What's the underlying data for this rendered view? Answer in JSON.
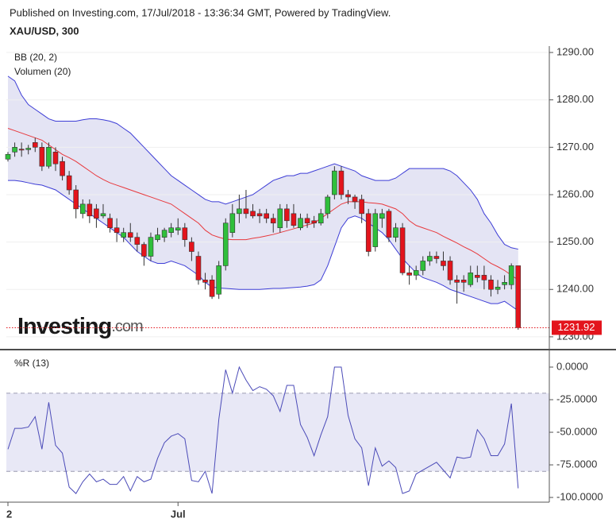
{
  "header": {
    "published": "Published on Investing.com, 17/Jul/2018 - 13:36:34 GMT, Powered by TradingView."
  },
  "watermark": [
    "Investing",
    ".com"
  ],
  "chart_data": [
    {
      "type": "candlestick",
      "title": "XAU/USD, 300",
      "indicators": [
        "BB (20, 2)",
        "Volumen (20)"
      ],
      "categories": [
        "2",
        null,
        null,
        null,
        null,
        null,
        null,
        null,
        null,
        null,
        null,
        null,
        null,
        null,
        null,
        null,
        null,
        null,
        null,
        null,
        null,
        null,
        null,
        null,
        null,
        "Jul",
        null,
        null,
        null,
        null,
        null,
        null,
        null,
        null,
        null,
        null,
        null,
        null,
        null,
        null,
        null,
        null,
        null,
        null,
        null,
        null,
        null,
        null,
        null,
        null,
        null,
        null,
        null,
        null,
        null,
        null,
        null,
        null,
        null,
        null,
        null,
        null,
        null,
        null,
        null,
        null,
        null,
        null,
        null,
        null,
        null,
        null,
        null,
        null,
        null,
        null
      ],
      "open": [
        1267.5,
        1269,
        1269.6,
        1269.5,
        1271,
        1270,
        1266,
        1269,
        1267,
        1264,
        1261,
        1256,
        1258,
        1257,
        1255.5,
        1255,
        1253,
        1251,
        1252,
        1251,
        1249.5,
        1247,
        1250.5,
        1251,
        1252,
        1252.5,
        1253,
        1250,
        1247,
        1242,
        1242,
        1239,
        1245,
        1252,
        1256,
        1257,
        1256.5,
        1256,
        1256,
        1255,
        1253,
        1257,
        1256,
        1253,
        1255,
        1254.5,
        1254,
        1256,
        1260,
        1265,
        1260,
        1259.5,
        1259,
        1256,
        1249,
        1255,
        1256.5,
        1251,
        1253,
        1243.5,
        1243,
        1244,
        1246,
        1247,
        1246,
        1246,
        1242,
        1242,
        1241,
        1243,
        1243,
        1242,
        1240,
        1241,
        1241,
        1245
      ],
      "high": [
        1269,
        1271,
        1271,
        1270.5,
        1272,
        1271,
        1271,
        1270,
        1268,
        1265,
        1262,
        1259,
        1259,
        1258,
        1258,
        1256,
        1255,
        1253,
        1254,
        1252,
        1250,
        1252,
        1253,
        1253,
        1254,
        1255,
        1254,
        1251,
        1248,
        1243.5,
        1243,
        1246,
        1255,
        1258,
        1260,
        1261,
        1258,
        1257,
        1257,
        1256,
        1258,
        1258,
        1258,
        1256,
        1256,
        1255.5,
        1257,
        1260,
        1266,
        1266,
        1261,
        1260,
        1260,
        1257,
        1257,
        1257,
        1257,
        1254,
        1254,
        1245,
        1245,
        1247,
        1248,
        1248,
        1248,
        1247,
        1243,
        1243,
        1245,
        1245,
        1245,
        1243,
        1242,
        1243,
        1245.5,
        1245
      ],
      "low": [
        1267,
        1268,
        1268,
        1268.5,
        1269,
        1265,
        1265.5,
        1265,
        1263,
        1260,
        1255,
        1255,
        1254,
        1253,
        1255,
        1252,
        1250,
        1250,
        1250,
        1248,
        1245,
        1246,
        1250,
        1250,
        1251,
        1251.5,
        1249,
        1246,
        1241,
        1240,
        1238,
        1238,
        1244,
        1251,
        1254,
        1255,
        1255,
        1254,
        1254,
        1252,
        1252,
        1253,
        1253,
        1252.5,
        1253,
        1253,
        1253.5,
        1255,
        1259,
        1259,
        1258,
        1257,
        1254,
        1247,
        1248,
        1253,
        1250,
        1250,
        1243,
        1241,
        1242,
        1243,
        1245,
        1245.5,
        1244,
        1241,
        1237,
        1239.5,
        1240.5,
        1241.5,
        1240,
        1238.5,
        1239,
        1240,
        1240,
        1231.5
      ],
      "close": [
        1268.5,
        1270,
        1269.4,
        1269.8,
        1270,
        1266,
        1270,
        1266.5,
        1264,
        1261,
        1257,
        1258,
        1255.5,
        1255,
        1256,
        1253,
        1252,
        1252,
        1251,
        1249.5,
        1247,
        1251,
        1251.5,
        1252.5,
        1253,
        1253,
        1250.5,
        1248,
        1242,
        1241.5,
        1238.5,
        1245,
        1254,
        1256,
        1257,
        1256,
        1255.5,
        1255.5,
        1255,
        1254,
        1257,
        1254.5,
        1253.5,
        1255,
        1254,
        1254,
        1256,
        1259.5,
        1265,
        1260,
        1259.5,
        1258.5,
        1256,
        1248,
        1256,
        1256,
        1251,
        1253,
        1243.5,
        1243,
        1244,
        1246,
        1247,
        1246.5,
        1245,
        1242,
        1241.5,
        1241.5,
        1243.5,
        1242.5,
        1242,
        1240,
        1240.5,
        1241.5,
        1245,
        1231.92
      ],
      "bb_upper": [
        1285,
        1284,
        1281,
        1279,
        1278,
        1277,
        1276,
        1275.5,
        1275.5,
        1275.5,
        1275.5,
        1275.8,
        1276,
        1276,
        1275.8,
        1275.5,
        1275,
        1274,
        1273,
        1271.5,
        1270,
        1268.5,
        1267,
        1265.5,
        1264,
        1263,
        1262,
        1261,
        1260,
        1259,
        1258.5,
        1258.5,
        1258,
        1258.5,
        1259,
        1259.5,
        1260,
        1261,
        1262,
        1263,
        1263.5,
        1264,
        1264,
        1264.5,
        1264.5,
        1265,
        1265.5,
        1266,
        1266.5,
        1266,
        1265.5,
        1265,
        1264,
        1263.5,
        1263,
        1263,
        1263,
        1263.5,
        1264.5,
        1265.5,
        1265.5,
        1265.5,
        1265.5,
        1265.5,
        1265.5,
        1265,
        1264,
        1262.5,
        1261,
        1259,
        1256,
        1254,
        1251.5,
        1249.5,
        1248.8,
        1248.5
      ],
      "bb_middle": [
        1274,
        1273.5,
        1273,
        1272.5,
        1272,
        1271.5,
        1270.5,
        1269.5,
        1268.5,
        1267.8,
        1267,
        1266,
        1265,
        1264,
        1263.2,
        1262.5,
        1262,
        1261.5,
        1261,
        1260.5,
        1260,
        1259.5,
        1259,
        1258.5,
        1258,
        1257,
        1256,
        1255,
        1254,
        1252.5,
        1251.5,
        1251,
        1250.6,
        1250.5,
        1250.5,
        1250.5,
        1250.8,
        1251,
        1251.3,
        1251.6,
        1252,
        1252.4,
        1252.8,
        1253.2,
        1253.6,
        1254,
        1255,
        1256,
        1257,
        1258,
        1258.5,
        1258.5,
        1258.5,
        1258.3,
        1258.2,
        1258,
        1257.5,
        1257,
        1256,
        1254.5,
        1253.5,
        1253,
        1252.5,
        1252,
        1251.2,
        1250.5,
        1249.8,
        1249,
        1248.3,
        1247.5,
        1246.5,
        1245.5,
        1244.8,
        1244,
        1243,
        1242
      ],
      "bb_lower": [
        1263,
        1263,
        1262.8,
        1262.5,
        1262.2,
        1262,
        1261.5,
        1261,
        1260,
        1259,
        1258,
        1257,
        1256,
        1255,
        1254,
        1253,
        1252,
        1251,
        1249.5,
        1248,
        1247,
        1246,
        1245.5,
        1245.5,
        1246,
        1245.5,
        1245,
        1244,
        1243,
        1241.5,
        1240.5,
        1240.3,
        1240.2,
        1240.1,
        1240,
        1240,
        1240,
        1240,
        1240.1,
        1240.2,
        1240.2,
        1240.3,
        1240.4,
        1240.5,
        1240.7,
        1241,
        1242,
        1245,
        1249,
        1253,
        1255,
        1255.5,
        1255,
        1254,
        1253,
        1252,
        1250.5,
        1248.5,
        1246.5,
        1245,
        1243.5,
        1242.5,
        1242,
        1241.5,
        1240.8,
        1240,
        1239.5,
        1239,
        1238.5,
        1238,
        1237.5,
        1237,
        1237,
        1237.5,
        1236.5,
        1235.5
      ],
      "up_color": "#2fbf3b",
      "down_color": "#e3141c",
      "band_color": "#3d3dd6",
      "middle_color": "#e8393d",
      "band_fill": "#e4e4f4",
      "ylim": [
        1227.3,
        1291.35
      ],
      "yticks": [
        {
          "value": 1230,
          "label": "1230.00"
        },
        {
          "value": 1240,
          "label": "1240.00"
        },
        {
          "value": 1250,
          "label": "1250.00"
        },
        {
          "value": 1260,
          "label": "1260.00"
        },
        {
          "value": 1270,
          "label": "1270.00"
        },
        {
          "value": 1280,
          "label": "1280.00"
        },
        {
          "value": 1290,
          "label": "1290.00"
        }
      ],
      "grid": true
    },
    {
      "type": "line",
      "title": "%R (13)",
      "values": [
        -63,
        -47,
        -47,
        -46,
        -38,
        -63,
        -27,
        -60,
        -66,
        -92,
        -97,
        -88,
        -82,
        -88,
        -86,
        -90,
        -90,
        -84,
        -95,
        -84,
        -88,
        -86,
        -70,
        -58,
        -53,
        -51,
        -55,
        -87,
        -88,
        -80,
        -97,
        -40,
        -2,
        -20,
        0,
        -10,
        -18,
        -15,
        -17,
        -22,
        -34,
        -14,
        -14,
        -44,
        -54,
        -68,
        -52,
        -38,
        0,
        0,
        -37,
        -55,
        -62,
        -91,
        -62,
        -76,
        -72,
        -77,
        -97,
        -95,
        -82,
        -79,
        -76,
        -73,
        -79,
        -85,
        -69,
        -70,
        -69,
        -48,
        -55,
        -68,
        -68,
        -59,
        -28,
        -93
      ],
      "color": "#4b4bb8",
      "levels": [
        -20,
        -80
      ],
      "level_color": "#9a9ab0",
      "band_fill": "#e8e8f6",
      "ylim": [
        -102.4,
        6.1
      ],
      "yticks": [
        {
          "value": 0,
          "label": "0.0000"
        },
        {
          "value": -25,
          "label": "-25.0000"
        },
        {
          "value": -50,
          "label": "-50.0000"
        },
        {
          "value": -75,
          "label": "-75.0000"
        },
        {
          "value": -100,
          "label": "-100.0000"
        }
      ]
    }
  ]
}
